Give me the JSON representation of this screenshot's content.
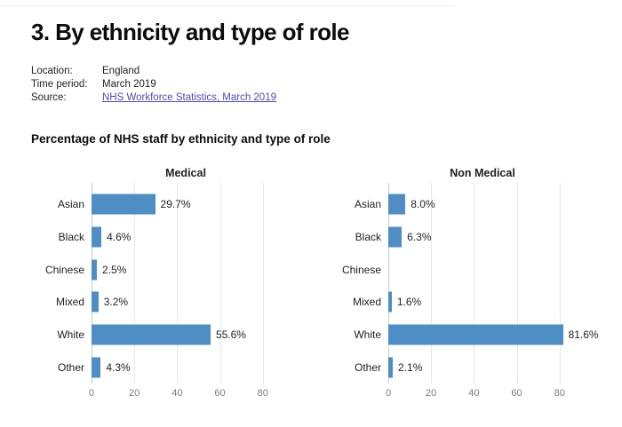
{
  "header": {
    "title": "3. By ethnicity and type of role"
  },
  "meta": {
    "rows": [
      {
        "label": "Location:",
        "value": "England"
      },
      {
        "label": "Time period:",
        "value": "March 2019"
      },
      {
        "label": "Source:",
        "value": "NHS Workforce Statistics, March 2019"
      }
    ]
  },
  "charts": {
    "heading": "Percentage of NHS staff by ethnicity and type of role"
  },
  "colors": {
    "bar": "#4f8dc5",
    "link": "#514ca6",
    "text": "#0b0c0c",
    "tick_label": "#7d7d7d",
    "gridline": "#e8e8e8",
    "axis_line": "#c9c9c9"
  },
  "chart_data": [
    {
      "type": "bar",
      "orientation": "horizontal",
      "title": "Medical",
      "categories": [
        "Asian",
        "Black",
        "Chinese",
        "Mixed",
        "White",
        "Other"
      ],
      "values": [
        29.7,
        4.6,
        2.5,
        3.2,
        55.6,
        4.3
      ],
      "value_labels": [
        "29.7%",
        "4.6%",
        "2.5%",
        "3.2%",
        "55.6%",
        "4.3%"
      ],
      "unit": "%",
      "xlim": [
        0,
        88
      ],
      "xticks": [
        0,
        20,
        40,
        60,
        80
      ],
      "grid": true,
      "legend": "none"
    },
    {
      "type": "bar",
      "orientation": "horizontal",
      "title": "Non Medical",
      "categories": [
        "Asian",
        "Black",
        "Chinese",
        "Mixed",
        "White",
        "Other"
      ],
      "values": [
        8.0,
        6.3,
        null,
        1.6,
        81.6,
        2.1
      ],
      "value_labels": [
        "8.0%",
        "6.3%",
        "",
        "1.6%",
        "81.6%",
        "2.1%"
      ],
      "unit": "%",
      "xlim": [
        0,
        88
      ],
      "xticks": [
        0,
        20,
        40,
        60,
        80
      ],
      "grid": true,
      "legend": "none"
    }
  ]
}
